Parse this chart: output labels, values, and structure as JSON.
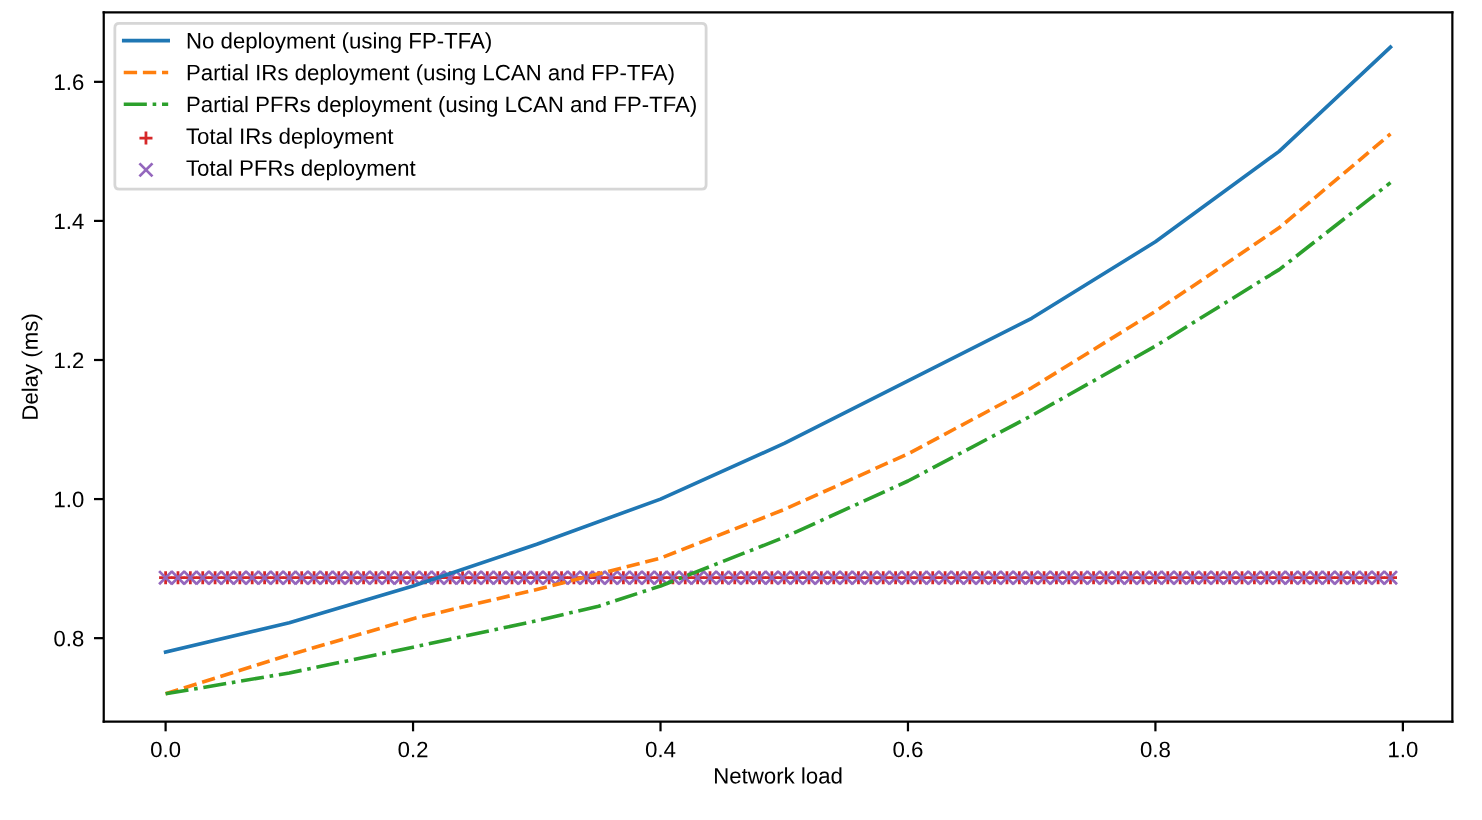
{
  "chart_data": {
    "type": "line",
    "xlabel": "Network load",
    "ylabel": "Delay (ms)",
    "xlim": [
      -0.05,
      1.04
    ],
    "ylim": [
      0.68,
      1.7
    ],
    "xticks": [
      {
        "value": 0,
        "label": "0.0"
      },
      0.2,
      0.4,
      0.6,
      0.8,
      {
        "value": 1,
        "label": "1.0"
      }
    ],
    "yticks": [
      0.8,
      {
        "value": 1,
        "label": "1.0"
      },
      1.2,
      1.4,
      1.6
    ],
    "grid": false,
    "legend": "top left",
    "series": [
      {
        "name": "No deployment (using FP-TFA)",
        "color": "#1f77b4",
        "line_style": "solid",
        "x": [
          0,
          0.1,
          0.2,
          0.3,
          0.4,
          0.5,
          0.6,
          0.7,
          0.8,
          0.9,
          0.99
        ],
        "values": [
          0.78,
          0.822,
          0.875,
          0.935,
          1.0,
          1.08,
          1.17,
          1.26,
          1.37,
          1.5,
          1.65
        ]
      },
      {
        "name": "Partial IRs deployment (using LCAN and FP-TFA)",
        "color": "#ff7f0e",
        "line_style": "dashed",
        "x": [
          0,
          0.1,
          0.2,
          0.3,
          0.4,
          0.5,
          0.6,
          0.7,
          0.8,
          0.9,
          0.99
        ],
        "values": [
          0.72,
          0.776,
          0.828,
          0.87,
          0.915,
          0.985,
          1.065,
          1.16,
          1.27,
          1.39,
          1.525
        ]
      },
      {
        "name": "Partial PFRs deployment (using LCAN and FP-TFA)",
        "color": "#2ca02c",
        "line_style": "dashdot",
        "x": [
          0,
          0.1,
          0.2,
          0.3,
          0.35,
          0.4,
          0.5,
          0.6,
          0.7,
          0.8,
          0.9,
          0.99
        ],
        "values": [
          0.72,
          0.75,
          0.787,
          0.825,
          0.846,
          0.875,
          0.945,
          1.026,
          1.12,
          1.22,
          1.33,
          1.455
        ]
      },
      {
        "name": "Total IRs deployment",
        "type": "scatter",
        "marker": "plus",
        "color": "#d62728",
        "x": [
          0,
          0.01,
          0.02,
          0.03,
          0.04,
          0.05,
          0.06,
          0.07,
          0.08,
          0.09,
          0.1,
          0.11,
          0.12,
          0.13,
          0.14,
          0.15,
          0.16,
          0.17,
          0.18,
          0.19,
          0.2,
          0.21,
          0.22,
          0.23,
          0.24,
          0.25,
          0.26,
          0.27,
          0.28,
          0.29,
          0.3,
          0.31,
          0.32,
          0.33,
          0.34,
          0.35,
          0.36,
          0.37,
          0.38,
          0.39,
          0.4,
          0.41,
          0.42,
          0.43,
          0.44,
          0.45,
          0.46,
          0.47,
          0.48,
          0.49,
          0.5,
          0.51,
          0.52,
          0.53,
          0.54,
          0.55,
          0.56,
          0.57,
          0.58,
          0.59,
          0.6,
          0.61,
          0.62,
          0.63,
          0.64,
          0.65,
          0.66,
          0.67,
          0.68,
          0.69,
          0.7,
          0.71,
          0.72,
          0.73,
          0.74,
          0.75,
          0.76,
          0.77,
          0.78,
          0.79,
          0.8,
          0.81,
          0.82,
          0.83,
          0.84,
          0.85,
          0.86,
          0.87,
          0.88,
          0.89,
          0.9,
          0.91,
          0.92,
          0.93,
          0.94,
          0.95,
          0.96,
          0.97,
          0.98,
          0.99
        ],
        "values": [
          0.887,
          0.887,
          0.887,
          0.887,
          0.887,
          0.887,
          0.887,
          0.887,
          0.887,
          0.887,
          0.887,
          0.887,
          0.887,
          0.887,
          0.887,
          0.887,
          0.887,
          0.887,
          0.887,
          0.887,
          0.887,
          0.887,
          0.887,
          0.887,
          0.887,
          0.887,
          0.887,
          0.887,
          0.887,
          0.887,
          0.887,
          0.887,
          0.887,
          0.887,
          0.887,
          0.887,
          0.887,
          0.887,
          0.887,
          0.887,
          0.887,
          0.887,
          0.887,
          0.887,
          0.887,
          0.887,
          0.887,
          0.887,
          0.887,
          0.887,
          0.887,
          0.887,
          0.887,
          0.887,
          0.887,
          0.887,
          0.887,
          0.887,
          0.887,
          0.887,
          0.887,
          0.887,
          0.887,
          0.887,
          0.887,
          0.887,
          0.887,
          0.887,
          0.887,
          0.887,
          0.887,
          0.887,
          0.887,
          0.887,
          0.887,
          0.887,
          0.887,
          0.887,
          0.887,
          0.887,
          0.887,
          0.887,
          0.887,
          0.887,
          0.887,
          0.887,
          0.887,
          0.887,
          0.887,
          0.887,
          0.887,
          0.887,
          0.887,
          0.887,
          0.887,
          0.887,
          0.887,
          0.887,
          0.887,
          0.887
        ]
      },
      {
        "name": "Total PFRs deployment",
        "type": "scatter",
        "marker": "cross",
        "color": "#9467bd",
        "x": [
          0,
          0.01,
          0.02,
          0.03,
          0.04,
          0.05,
          0.06,
          0.07,
          0.08,
          0.09,
          0.1,
          0.11,
          0.12,
          0.13,
          0.14,
          0.15,
          0.16,
          0.17,
          0.18,
          0.19,
          0.2,
          0.21,
          0.22,
          0.23,
          0.24,
          0.25,
          0.26,
          0.27,
          0.28,
          0.29,
          0.3,
          0.31,
          0.32,
          0.33,
          0.34,
          0.35,
          0.36,
          0.37,
          0.38,
          0.39,
          0.4,
          0.41,
          0.42,
          0.43,
          0.44,
          0.45,
          0.46,
          0.47,
          0.48,
          0.49,
          0.5,
          0.51,
          0.52,
          0.53,
          0.54,
          0.55,
          0.56,
          0.57,
          0.58,
          0.59,
          0.6,
          0.61,
          0.62,
          0.63,
          0.64,
          0.65,
          0.66,
          0.67,
          0.68,
          0.69,
          0.7,
          0.71,
          0.72,
          0.73,
          0.74,
          0.75,
          0.76,
          0.77,
          0.78,
          0.79,
          0.8,
          0.81,
          0.82,
          0.83,
          0.84,
          0.85,
          0.86,
          0.87,
          0.88,
          0.89,
          0.9,
          0.91,
          0.92,
          0.93,
          0.94,
          0.95,
          0.96,
          0.97,
          0.98,
          0.99
        ],
        "values": [
          0.887,
          0.887,
          0.887,
          0.887,
          0.887,
          0.887,
          0.887,
          0.887,
          0.887,
          0.887,
          0.887,
          0.887,
          0.887,
          0.887,
          0.887,
          0.887,
          0.887,
          0.887,
          0.887,
          0.887,
          0.887,
          0.887,
          0.887,
          0.887,
          0.887,
          0.887,
          0.887,
          0.887,
          0.887,
          0.887,
          0.887,
          0.887,
          0.887,
          0.887,
          0.887,
          0.887,
          0.887,
          0.887,
          0.887,
          0.887,
          0.887,
          0.887,
          0.887,
          0.887,
          0.887,
          0.887,
          0.887,
          0.887,
          0.887,
          0.887,
          0.887,
          0.887,
          0.887,
          0.887,
          0.887,
          0.887,
          0.887,
          0.887,
          0.887,
          0.887,
          0.887,
          0.887,
          0.887,
          0.887,
          0.887,
          0.887,
          0.887,
          0.887,
          0.887,
          0.887,
          0.887,
          0.887,
          0.887,
          0.887,
          0.887,
          0.887,
          0.887,
          0.887,
          0.887,
          0.887,
          0.887,
          0.887,
          0.887,
          0.887,
          0.887,
          0.887,
          0.887,
          0.887,
          0.887,
          0.887,
          0.887,
          0.887,
          0.887,
          0.887,
          0.887,
          0.887,
          0.887,
          0.887,
          0.887,
          0.887
        ]
      }
    ]
  }
}
